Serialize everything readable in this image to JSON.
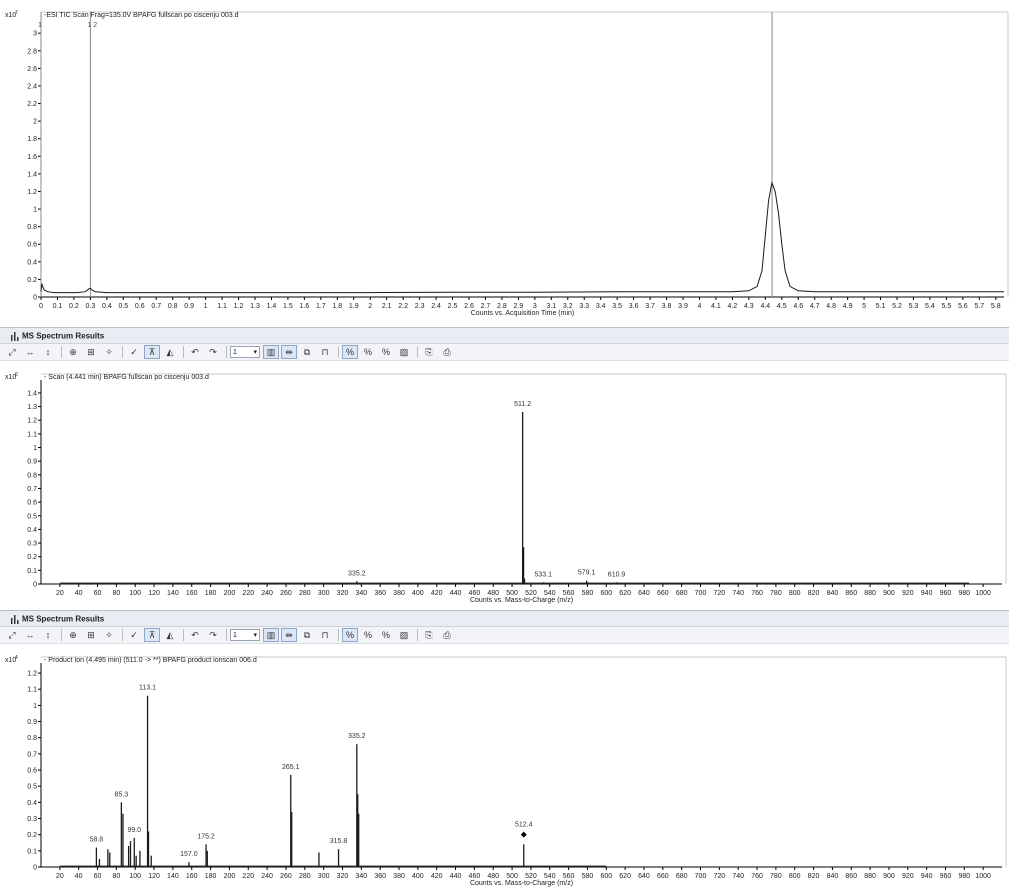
{
  "chart_data": [
    {
      "type": "line",
      "title": "-ESI TIC Scan Frag=135.0V BPAFG fullscan po ciscenju 003.d",
      "xlabel": "Counts vs. Acquisition Time (min)",
      "y_multiplier": "x10",
      "y_exponent": "7",
      "xlim": [
        0,
        5.85
      ],
      "ylim": [
        0,
        3.15
      ],
      "x_ticks": [
        0,
        0.1,
        0.2,
        0.3,
        0.4,
        0.5,
        0.6,
        0.7,
        0.8,
        0.9,
        1,
        1.1,
        1.2,
        1.3,
        1.4,
        1.5,
        1.6,
        1.7,
        1.8,
        1.9,
        2,
        2.1,
        2.2,
        2.3,
        2.4,
        2.5,
        2.6,
        2.7,
        2.8,
        2.9,
        3,
        3.1,
        3.2,
        3.3,
        3.4,
        3.5,
        3.6,
        3.7,
        3.8,
        3.9,
        4,
        4.1,
        4.2,
        4.3,
        4.4,
        4.5,
        4.6,
        4.7,
        4.8,
        4.9,
        5,
        5.1,
        5.2,
        5.3,
        5.4,
        5.5,
        5.6,
        5.7,
        5.8
      ],
      "y_ticks": [
        0,
        0.2,
        0.4,
        0.6,
        0.8,
        1,
        1.2,
        1.4,
        1.6,
        1.8,
        2,
        2.2,
        2.4,
        2.6,
        2.8,
        3
      ],
      "markers": [
        {
          "x": 0.0,
          "label": "1"
        },
        {
          "x": 0.3,
          "label": "1 2"
        },
        {
          "x": 4.441,
          "label": ""
        }
      ],
      "series": [
        {
          "x": [
            0,
            0.005,
            0.01,
            0.02,
            0.04,
            0.08,
            0.15,
            0.22,
            0.27,
            0.29,
            0.3,
            0.31,
            0.33,
            0.4,
            0.6,
            1.0,
            1.5,
            2.0,
            2.5,
            3.0,
            3.5,
            4.0,
            4.2,
            4.3,
            4.35,
            4.38,
            4.4,
            4.42,
            4.44,
            4.46,
            4.48,
            4.5,
            4.52,
            4.55,
            4.6,
            4.7,
            5.0,
            5.5,
            5.85
          ],
          "y": [
            0.06,
            0.15,
            0.12,
            0.08,
            0.06,
            0.05,
            0.05,
            0.05,
            0.06,
            0.09,
            0.1,
            0.08,
            0.06,
            0.05,
            0.05,
            0.05,
            0.05,
            0.05,
            0.055,
            0.055,
            0.06,
            0.06,
            0.06,
            0.07,
            0.12,
            0.3,
            0.7,
            1.1,
            1.3,
            1.2,
            0.95,
            0.6,
            0.3,
            0.12,
            0.07,
            0.06,
            0.06,
            0.06,
            0.06
          ]
        }
      ]
    },
    {
      "type": "bar",
      "title": "- Scan (4.441 min) BPAFG fullscan po ciscenju 003.d",
      "xlabel": "Counts vs. Mass-to-Charge (m/z)",
      "y_multiplier": "x10",
      "y_exponent": "6",
      "xlim": [
        0,
        1020
      ],
      "ylim": [
        0,
        1.48
      ],
      "x_ticks": [
        20,
        40,
        60,
        80,
        100,
        120,
        140,
        160,
        180,
        200,
        220,
        240,
        260,
        280,
        300,
        320,
        340,
        360,
        380,
        400,
        420,
        440,
        460,
        480,
        500,
        520,
        540,
        560,
        580,
        600,
        620,
        640,
        660,
        680,
        700,
        720,
        740,
        760,
        780,
        800,
        820,
        840,
        860,
        880,
        900,
        920,
        940,
        960,
        980,
        1000
      ],
      "y_ticks": [
        0,
        0.1,
        0.2,
        0.3,
        0.4,
        0.5,
        0.6,
        0.7,
        0.8,
        0.9,
        1,
        1.1,
        1.2,
        1.3,
        1.4
      ],
      "peaks": [
        {
          "mz": 268,
          "i": 0.005
        },
        {
          "mz": 290,
          "i": 0.006
        },
        {
          "mz": 335.2,
          "i": 0.02,
          "label": "335.2"
        },
        {
          "mz": 470,
          "i": 0.005
        },
        {
          "mz": 511.2,
          "i": 1.26,
          "label": "511.2"
        },
        {
          "mz": 512.2,
          "i": 0.27
        },
        {
          "mz": 513.2,
          "i": 0.04
        },
        {
          "mz": 533.1,
          "i": 0.012,
          "label": "533.1"
        },
        {
          "mz": 560,
          "i": 0.006
        },
        {
          "mz": 579.1,
          "i": 0.025,
          "label": "579.1"
        },
        {
          "mz": 581,
          "i": 0.01
        },
        {
          "mz": 596,
          "i": 0.006
        },
        {
          "mz": 610.9,
          "i": 0.012,
          "label": "610.9"
        },
        {
          "mz": 625,
          "i": 0.005
        },
        {
          "mz": 640,
          "i": 0.005
        }
      ]
    },
    {
      "type": "bar",
      "title": "- Product Ion (4.495 min) (511.0 -> **) BPAFG product ionscan 006.d",
      "xlabel": "Counts vs. Mass-to-Charge (m/z)",
      "y_multiplier": "x10",
      "y_exponent": "4",
      "xlim": [
        0,
        1020
      ],
      "ylim": [
        0,
        1.25
      ],
      "x_ticks": [
        20,
        40,
        60,
        80,
        100,
        120,
        140,
        160,
        180,
        200,
        220,
        240,
        260,
        280,
        300,
        320,
        340,
        360,
        380,
        400,
        420,
        440,
        460,
        480,
        500,
        520,
        540,
        560,
        580,
        600,
        620,
        640,
        660,
        680,
        700,
        720,
        740,
        760,
        780,
        800,
        820,
        840,
        860,
        880,
        900,
        920,
        940,
        960,
        980,
        1000
      ],
      "y_ticks": [
        0,
        0.1,
        0.2,
        0.3,
        0.4,
        0.5,
        0.6,
        0.7,
        0.8,
        0.9,
        1,
        1.1,
        1.2
      ],
      "precursor": {
        "mz": 512.4,
        "label": "512.4"
      },
      "peaks": [
        {
          "mz": 58.8,
          "i": 0.12,
          "label": "58.8"
        },
        {
          "mz": 62,
          "i": 0.05
        },
        {
          "mz": 71,
          "i": 0.11
        },
        {
          "mz": 73,
          "i": 0.09
        },
        {
          "mz": 85.3,
          "i": 0.4,
          "label": "85.3"
        },
        {
          "mz": 87,
          "i": 0.33
        },
        {
          "mz": 93,
          "i": 0.13
        },
        {
          "mz": 95,
          "i": 0.16
        },
        {
          "mz": 99.0,
          "i": 0.18,
          "label": "99.0"
        },
        {
          "mz": 101,
          "i": 0.07
        },
        {
          "mz": 105,
          "i": 0.1
        },
        {
          "mz": 113.1,
          "i": 1.06,
          "label": "113.1"
        },
        {
          "mz": 114.1,
          "i": 0.22
        },
        {
          "mz": 117,
          "i": 0.07
        },
        {
          "mz": 157.0,
          "i": 0.03,
          "label": "157.0"
        },
        {
          "mz": 175.2,
          "i": 0.14,
          "label": "175.2"
        },
        {
          "mz": 176.5,
          "i": 0.1
        },
        {
          "mz": 265.1,
          "i": 0.57,
          "label": "265.1"
        },
        {
          "mz": 266.1,
          "i": 0.34
        },
        {
          "mz": 295,
          "i": 0.09
        },
        {
          "mz": 315.8,
          "i": 0.11,
          "label": "315.8"
        },
        {
          "mz": 335.2,
          "i": 0.76,
          "label": "335.2"
        },
        {
          "mz": 336.2,
          "i": 0.45
        },
        {
          "mz": 337.2,
          "i": 0.33
        },
        {
          "mz": 512.4,
          "i": 0.14
        }
      ]
    }
  ],
  "panels": [
    {
      "header": "MS Spectrum Results",
      "toolbar_page": "1"
    },
    {
      "header": "MS Spectrum Results",
      "toolbar_page": "1"
    }
  ],
  "toolbar_icons": [
    "autoscale-xy-icon",
    "autoscale-x-icon",
    "autoscale-y-icon",
    "zoom-icon",
    "fit-icon",
    "peak-label-icon",
    "mark-icon",
    "select-range-icon",
    "integrate-icon",
    "undo-icon",
    "redo-icon",
    "page-select",
    "bar-chart-icon",
    "width-icon",
    "compare-icon",
    "spectrum-icon",
    "percent-mode-icon",
    "percent-icon",
    "percent-x-icon",
    "pattern-icon",
    "copy-icon",
    "print-icon"
  ],
  "toolbar_glyphs": {
    "pct": "%"
  },
  "colors": {
    "axis": "#000000",
    "trace": "#1a1a1a",
    "marker_line": "#8a8a8a",
    "header_bg": "#e9ecf2"
  }
}
